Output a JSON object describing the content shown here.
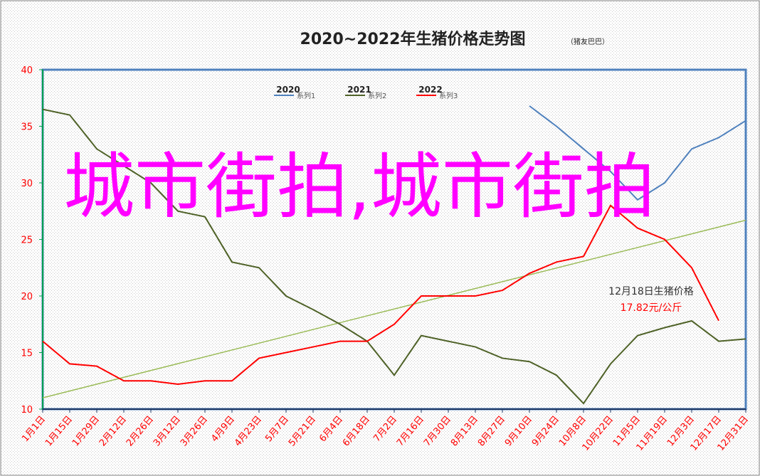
{
  "chart_data": {
    "type": "line",
    "title": "2020~2022年生猪价格走势图",
    "subtitle": "（猪友巴巴）",
    "categories": [
      "1月1日",
      "1月15日",
      "1月29日",
      "2月12日",
      "2月26日",
      "3月12日",
      "3月26日",
      "4月9日",
      "4月23日",
      "5月7日",
      "5月21日",
      "6月4日",
      "6月18日",
      "7月2日",
      "7月16日",
      "7月30日",
      "8月13日",
      "8月27日",
      "9月10日",
      "9月24日",
      "10月8日",
      "10月22日",
      "11月5日",
      "11月19日",
      "12月3日",
      "12月17日",
      "12月31日"
    ],
    "series": [
      {
        "name": "系列1",
        "label": "2020",
        "color": "#4f81bd",
        "values": [
          null,
          null,
          null,
          null,
          null,
          null,
          null,
          null,
          null,
          null,
          null,
          null,
          null,
          null,
          null,
          null,
          null,
          null,
          36.8,
          35,
          33,
          31,
          28.5,
          30,
          33,
          34,
          35.5
        ]
      },
      {
        "name": "系列2",
        "label": "2021",
        "color": "#4f6228",
        "values": [
          36.5,
          36,
          33,
          31.5,
          30,
          27.5,
          27,
          23,
          22.5,
          20,
          18.8,
          17.5,
          16,
          13,
          16.5,
          16,
          15.5,
          14.5,
          14.2,
          13,
          10.5,
          14,
          16.5,
          17.2,
          17.8,
          16,
          16.2
        ]
      },
      {
        "name": "系列3",
        "label": "2022",
        "color": "#ff0000",
        "values": [
          16,
          14,
          13.8,
          12.5,
          12.5,
          12.2,
          12.5,
          12.5,
          14.5,
          15,
          15.5,
          16,
          16,
          17.5,
          20,
          20,
          20,
          20.5,
          22,
          23,
          23.5,
          28,
          26,
          25,
          22.5,
          17.82,
          null
        ]
      }
    ],
    "trendline": {
      "color": "#9bbb59",
      "values": [
        11,
        26.7
      ]
    },
    "annotations": [
      "12月18日生猪价格",
      "17.82元/公斤"
    ],
    "watermark": "城市街拍,城市街拍",
    "ylim": [
      10,
      40
    ],
    "yticks": [
      10,
      15,
      20,
      25,
      30,
      35,
      40
    ],
    "grid": false
  }
}
